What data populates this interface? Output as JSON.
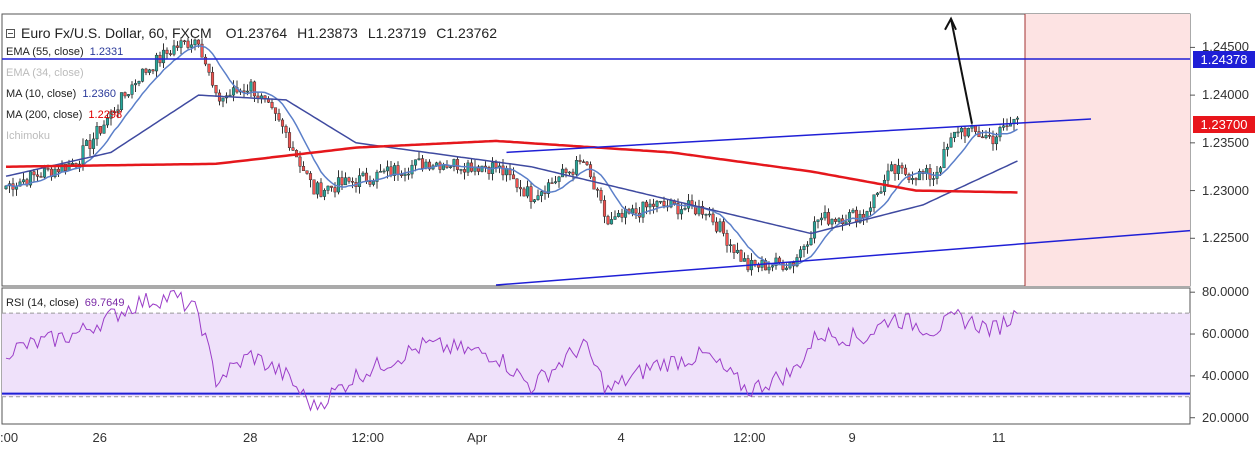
{
  "header": {
    "symbol": "Euro Fx/U.S. Dollar, 60, FXCM",
    "open_label": "O",
    "open": "1.23764",
    "high_label": "H",
    "high": "1.23873",
    "low_label": "L",
    "low": "1.23719",
    "close_label": "C",
    "close": "1.23762"
  },
  "legends": [
    {
      "label": "EMA (55, close)",
      "value": "1.2331",
      "color": "#2b3a9a",
      "faded": false
    },
    {
      "label": "EMA (34, close)",
      "value": "",
      "color": "#bbbbbb",
      "faded": true
    },
    {
      "label": "MA (10, close)",
      "value": "1.2360",
      "color": "#2b3a9a",
      "faded": false
    },
    {
      "label": "MA (200, close)",
      "value": "1.2298",
      "color": "#e00000",
      "faded": false
    },
    {
      "label": "Ichimoku",
      "value": "",
      "color": "#bbbbbb",
      "faded": true
    }
  ],
  "rsi_legend": {
    "label": "RSI (14, close)",
    "value": "69.7649"
  },
  "price_tags": [
    {
      "value": "1.24378",
      "price": 1.24378,
      "color": "#1f1fd6"
    },
    {
      "value": "1.23700",
      "price": 1.237,
      "color": "#e8151b"
    }
  ],
  "colors": {
    "candle_up": "#26a69a",
    "candle_down": "#ef5350",
    "wick": "#333333",
    "ema55": "#3f4aa0",
    "ma10": "#5b7fc9",
    "ma200": "#e5171c",
    "trendline": "#1f1fd6",
    "rsi_line": "#9b3dc8",
    "rsi_band": "#efe1fa",
    "future_zone": "#fde3e3",
    "future_line": "#a33030"
  },
  "chart_data": [
    {
      "type": "candlestick",
      "title": "Euro Fx/U.S. Dollar, 60, FXCM",
      "y_ticks": [
        "1.22500",
        "1.23000",
        "1.23500",
        "1.24000",
        "1.24500"
      ],
      "y_tick_values": [
        1.225,
        1.23,
        1.235,
        1.24,
        1.245
      ],
      "ylim": [
        1.22,
        1.2485
      ],
      "x_ticks": [
        ":00",
        "26",
        "28",
        "12:00",
        "Apr",
        "4",
        "12:00",
        "9",
        "11"
      ],
      "x_tick_index": [
        0,
        27,
        70,
        101,
        134,
        177,
        210,
        243,
        284
      ],
      "bars": 290,
      "key_points": [
        {
          "i": 0,
          "close": 1.2305
        },
        {
          "i": 20,
          "close": 1.233
        },
        {
          "i": 38,
          "close": 1.242
        },
        {
          "i": 48,
          "close": 1.245
        },
        {
          "i": 55,
          "close": 1.246
        },
        {
          "i": 60,
          "close": 1.2395
        },
        {
          "i": 70,
          "close": 1.241
        },
        {
          "i": 80,
          "close": 1.236
        },
        {
          "i": 88,
          "close": 1.23
        },
        {
          "i": 100,
          "close": 1.231
        },
        {
          "i": 120,
          "close": 1.233
        },
        {
          "i": 140,
          "close": 1.2325
        },
        {
          "i": 150,
          "close": 1.2295
        },
        {
          "i": 165,
          "close": 1.233
        },
        {
          "i": 172,
          "close": 1.2265
        },
        {
          "i": 185,
          "close": 1.2285
        },
        {
          "i": 200,
          "close": 1.228
        },
        {
          "i": 212,
          "close": 1.222
        },
        {
          "i": 225,
          "close": 1.2225
        },
        {
          "i": 232,
          "close": 1.227
        },
        {
          "i": 245,
          "close": 1.2275
        },
        {
          "i": 253,
          "close": 1.232
        },
        {
          "i": 265,
          "close": 1.2315
        },
        {
          "i": 272,
          "close": 1.2365
        },
        {
          "i": 282,
          "close": 1.2355
        },
        {
          "i": 289,
          "close": 1.2376
        }
      ],
      "ma200_points": [
        [
          0,
          1.2325
        ],
        [
          60,
          1.2328
        ],
        [
          100,
          1.2345
        ],
        [
          140,
          1.2352
        ],
        [
          190,
          1.234
        ],
        [
          230,
          1.232
        ],
        [
          260,
          1.23
        ],
        [
          289,
          1.2298
        ]
      ],
      "ema55_points": [
        [
          0,
          1.2315
        ],
        [
          30,
          1.234
        ],
        [
          55,
          1.24
        ],
        [
          80,
          1.2395
        ],
        [
          100,
          1.235
        ],
        [
          150,
          1.2325
        ],
        [
          190,
          1.229
        ],
        [
          230,
          1.2255
        ],
        [
          262,
          1.2285
        ],
        [
          289,
          1.2331
        ]
      ],
      "horizontal_line": 1.24378,
      "trendlines": [
        {
          "from": [
            143,
            1.234
          ],
          "to": [
            310,
            1.2375
          ]
        },
        {
          "from": [
            140,
            1.2201
          ],
          "to": [
            340,
            1.2258
          ]
        }
      ],
      "arrow": {
        "from": [
          276,
          1.237
        ],
        "to": [
          270,
          1.248
        ]
      }
    },
    {
      "type": "line",
      "title": "RSI (14, close)",
      "y_ticks": [
        "20.0000",
        "40.0000",
        "60.0000",
        "80.0000"
      ],
      "y_tick_values": [
        20,
        40,
        60,
        80
      ],
      "ylim": [
        17,
        82
      ],
      "levels": [
        30,
        70
      ],
      "last_value": 69.7649,
      "key_points": [
        {
          "i": 0,
          "v": 52
        },
        {
          "i": 20,
          "v": 60
        },
        {
          "i": 38,
          "v": 75
        },
        {
          "i": 48,
          "v": 78
        },
        {
          "i": 55,
          "v": 70
        },
        {
          "i": 60,
          "v": 38
        },
        {
          "i": 70,
          "v": 50
        },
        {
          "i": 80,
          "v": 40
        },
        {
          "i": 88,
          "v": 25
        },
        {
          "i": 100,
          "v": 40
        },
        {
          "i": 120,
          "v": 55
        },
        {
          "i": 140,
          "v": 50
        },
        {
          "i": 150,
          "v": 35
        },
        {
          "i": 165,
          "v": 55
        },
        {
          "i": 172,
          "v": 33
        },
        {
          "i": 185,
          "v": 45
        },
        {
          "i": 200,
          "v": 50
        },
        {
          "i": 212,
          "v": 33
        },
        {
          "i": 225,
          "v": 42
        },
        {
          "i": 232,
          "v": 60
        },
        {
          "i": 245,
          "v": 58
        },
        {
          "i": 253,
          "v": 68
        },
        {
          "i": 265,
          "v": 62
        },
        {
          "i": 272,
          "v": 68
        },
        {
          "i": 282,
          "v": 62
        },
        {
          "i": 289,
          "v": 69.76
        }
      ]
    }
  ]
}
